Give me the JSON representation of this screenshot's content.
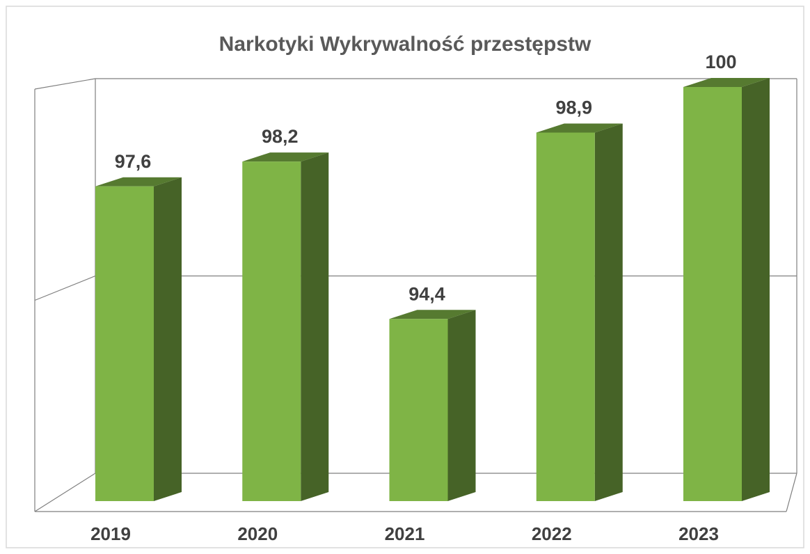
{
  "chart_data": {
    "type": "bar3d",
    "title": "Narkotyki Wykrywalność przestępstw",
    "categories": [
      "2019",
      "2020",
      "2021",
      "2022",
      "2023"
    ],
    "values": [
      97.6,
      98.2,
      94.4,
      98.9,
      100
    ],
    "value_labels": [
      "97,6",
      "98,2",
      "94,4",
      "98,9",
      "100"
    ],
    "color": "#7fb446",
    "ylim": [
      90,
      100
    ],
    "yticks": [
      90,
      95,
      100
    ],
    "grid": true
  }
}
